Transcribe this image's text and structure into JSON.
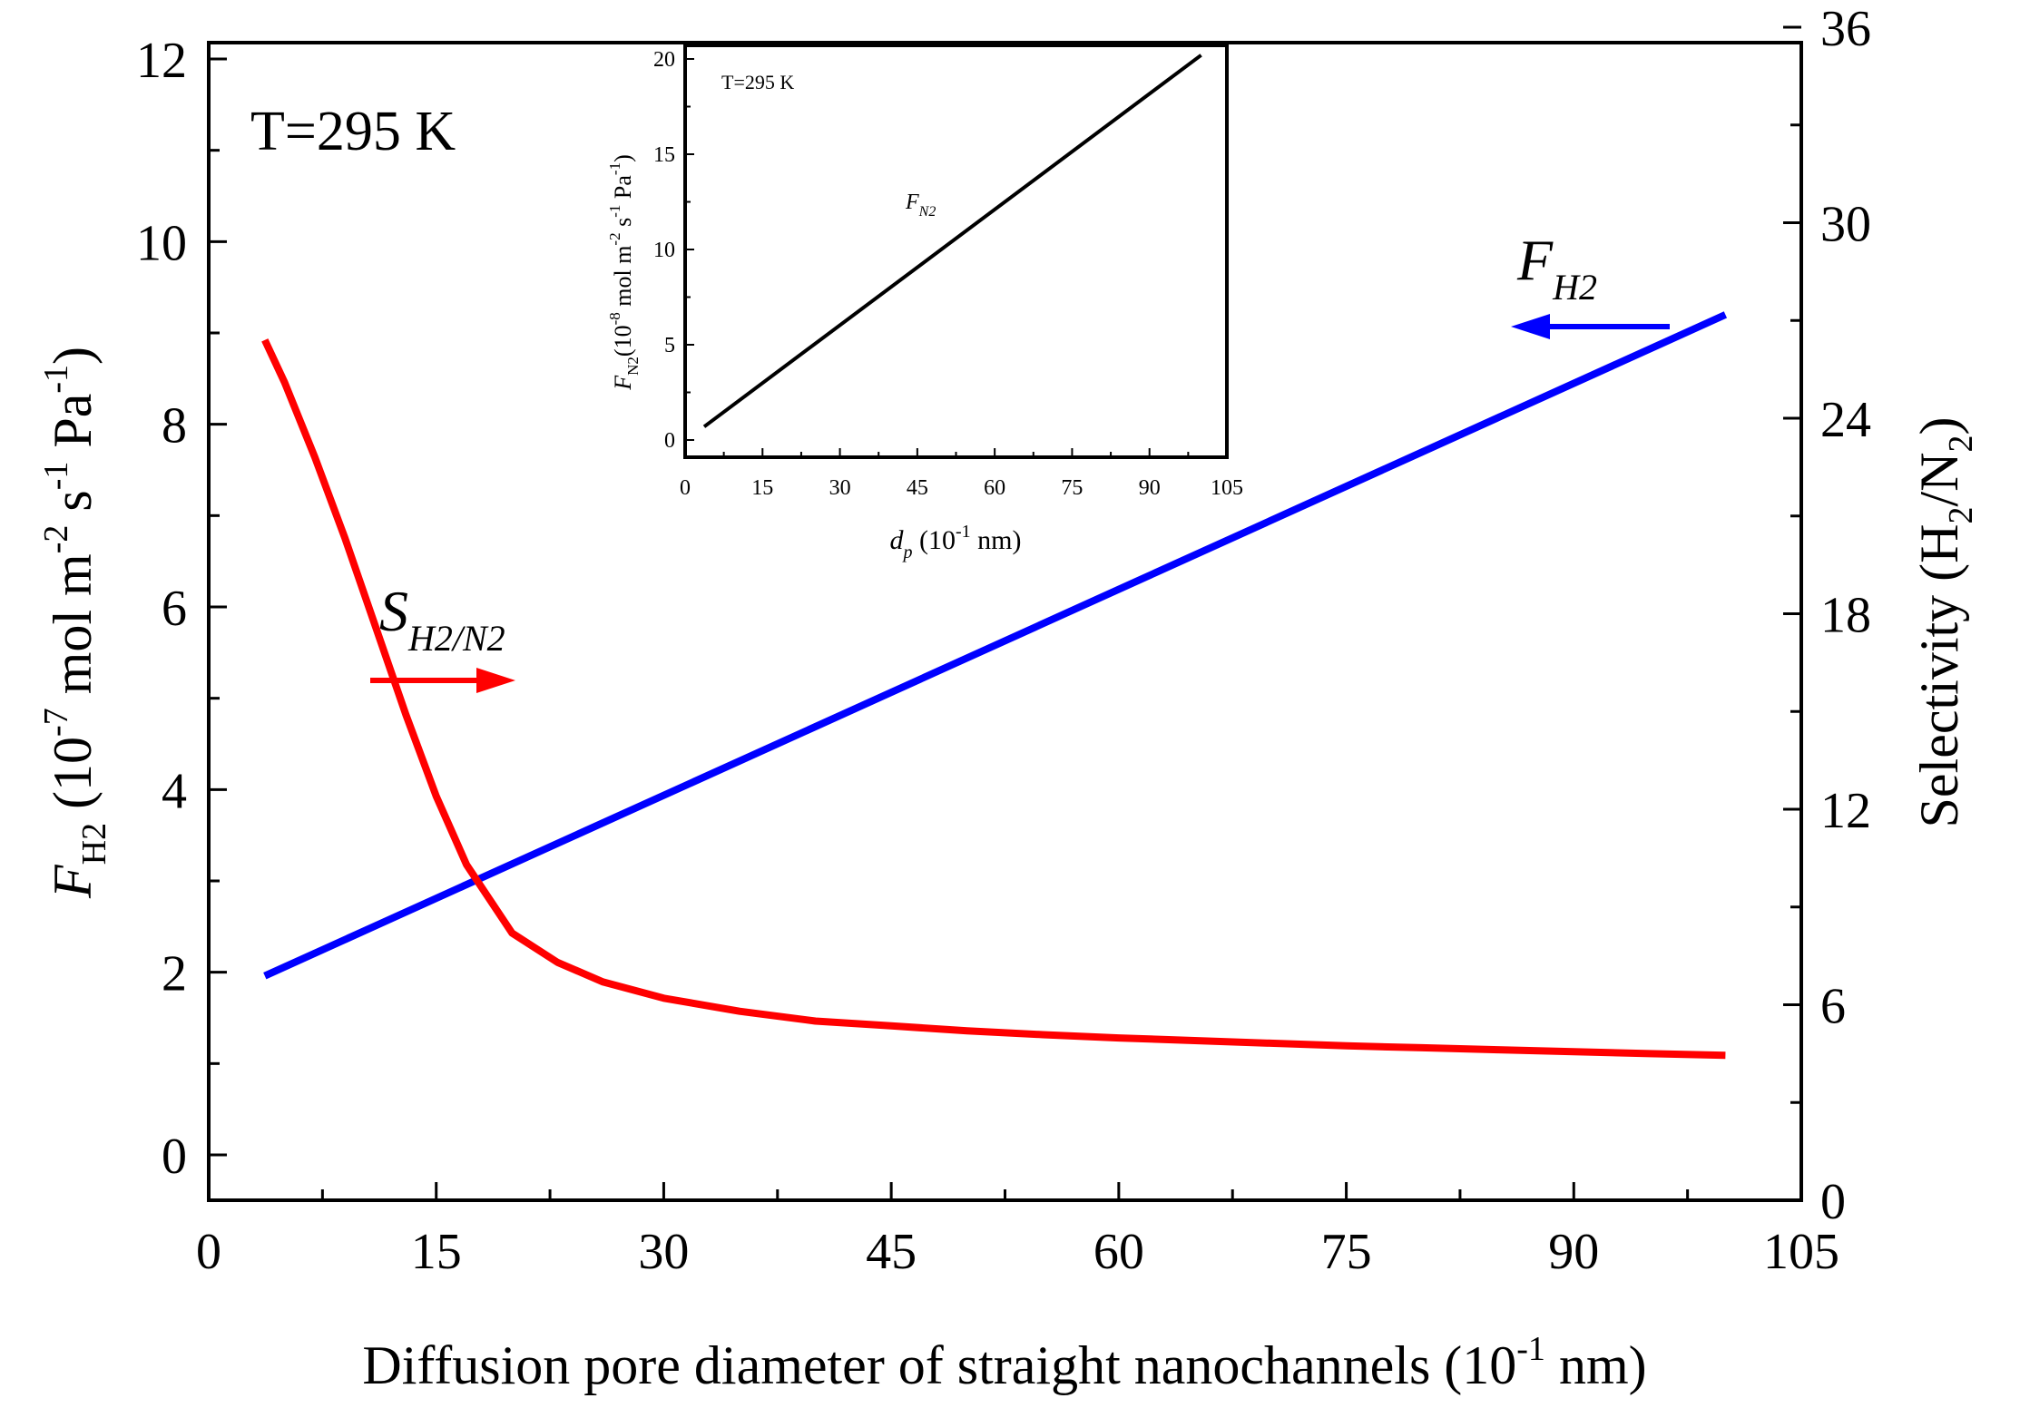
{
  "chart_data": [
    {
      "type": "line",
      "annotation": "T=295 K",
      "xlabel": "Diffusion pore diameter of straight nanochannels (10",
      "xlabel_exp": "-1",
      "xlabel_end": " nm)",
      "xlim": [
        0,
        105
      ],
      "x_ticks": [
        "0",
        "15",
        "30",
        "45",
        "60",
        "75",
        "90",
        "105"
      ],
      "ylabel_left": {
        "symbol": "F",
        "subscript": "H2",
        "parts": [
          {
            "base": "(10",
            "sup": "-7"
          },
          {
            "base": " mol m",
            "sup": "-2"
          },
          {
            "base": " s",
            "sup": "-1"
          },
          {
            "base": " Pa",
            "sup": "-1"
          },
          {
            "base": ")",
            "sup": ""
          }
        ]
      },
      "ylim_left": [
        0,
        12
      ],
      "y_ticks_left": [
        "0",
        "2",
        "4",
        "6",
        "8",
        "10",
        "12"
      ],
      "ylabel_right": {
        "pre": "Selectivity (H",
        "sub1": "2",
        "mid": "/N",
        "sub2": "2",
        "post": ")"
      },
      "ylim_right": [
        0,
        36
      ],
      "y_ticks_right": [
        "0",
        "6",
        "12",
        "18",
        "24",
        "30",
        "36"
      ],
      "series": [
        {
          "name": "F",
          "name_sub": "H2",
          "axis": "left",
          "color": "#0000ff",
          "x": [
            3.7,
            100
          ],
          "y": [
            1.96,
            9.2
          ]
        },
        {
          "name": "S",
          "name_sub": "H2/N2",
          "axis": "right",
          "color": "#ff0000",
          "x": [
            3.7,
            5,
            7,
            9,
            11,
            13,
            15,
            17,
            20,
            23,
            26,
            30,
            35,
            40,
            45,
            50,
            55,
            60,
            65,
            70,
            75,
            80,
            85,
            90,
            95,
            100
          ],
          "y": [
            26.4,
            25.1,
            22.8,
            20.3,
            17.6,
            14.9,
            12.4,
            10.3,
            8.2,
            7.3,
            6.7,
            6.2,
            5.8,
            5.5,
            5.35,
            5.2,
            5.08,
            4.98,
            4.9,
            4.82,
            4.74,
            4.68,
            4.62,
            4.56,
            4.5,
            4.45
          ]
        }
      ]
    },
    {
      "type": "line",
      "inset": true,
      "annotation": "T=295 K",
      "xlabel": {
        "symbol": "d",
        "sub": "p",
        "pre": " (10",
        "sup": "-1",
        "post": " nm)"
      },
      "xlim": [
        0,
        105
      ],
      "x_ticks": [
        "0",
        "15",
        "30",
        "45",
        "60",
        "75",
        "90",
        "105"
      ],
      "ylabel": {
        "symbol": "F",
        "sub": "N2",
        "text": "(10",
        "sup1": "-8",
        "mid1": " mol m",
        "sup2": "-2",
        "mid2": " s",
        "sup3": "-1",
        "mid3": " Pa",
        "sup4": "-1",
        "end": ")"
      },
      "ylim": [
        -1,
        21
      ],
      "y_ticks": [
        "0",
        "5",
        "10",
        "15",
        "20"
      ],
      "series": [
        {
          "name": "F",
          "name_sub": "N2",
          "color": "#000000",
          "x": [
            3.7,
            100
          ],
          "y": [
            0.7,
            20.2
          ]
        }
      ]
    }
  ]
}
